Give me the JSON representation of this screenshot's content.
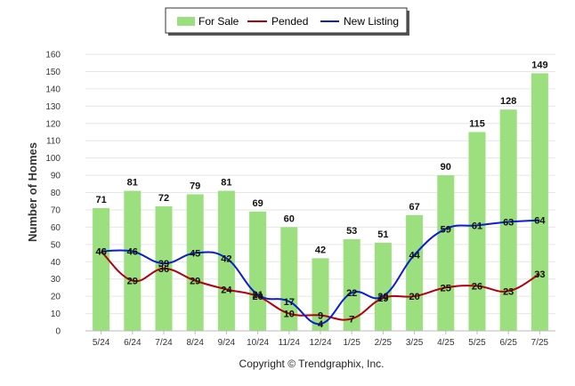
{
  "chart_data": {
    "type": "bar",
    "categories": [
      "5/24",
      "6/24",
      "7/24",
      "8/24",
      "9/24",
      "10/24",
      "11/24",
      "12/24",
      "1/25",
      "2/25",
      "3/25",
      "4/25",
      "5/25",
      "6/25",
      "7/25"
    ],
    "series": [
      {
        "name": "For Sale",
        "type": "bar",
        "color": "#9bdf7f",
        "values": [
          71,
          81,
          72,
          79,
          81,
          69,
          60,
          42,
          53,
          51,
          67,
          90,
          115,
          128,
          149
        ]
      },
      {
        "name": "Pended",
        "type": "line",
        "color": "#b3000c",
        "values": [
          46,
          29,
          36,
          29,
          24,
          20,
          10,
          9,
          7,
          19,
          20,
          25,
          26,
          23,
          33
        ]
      },
      {
        "name": "New Listing",
        "type": "line",
        "color": "#0a1ed4",
        "values": [
          46,
          46,
          39,
          45,
          42,
          21,
          17,
          4,
          22,
          20,
          44,
          59,
          61,
          63,
          64
        ]
      }
    ],
    "ylabel": "Number of Homes",
    "xlabel": "",
    "ylim": [
      0,
      160
    ],
    "yticks": [
      0,
      10,
      20,
      30,
      40,
      50,
      60,
      70,
      80,
      90,
      100,
      110,
      120,
      130,
      140,
      150,
      160
    ],
    "grid": true,
    "legend_position": "top-center",
    "footer": "Copyright © Trendgraphix, Inc."
  }
}
